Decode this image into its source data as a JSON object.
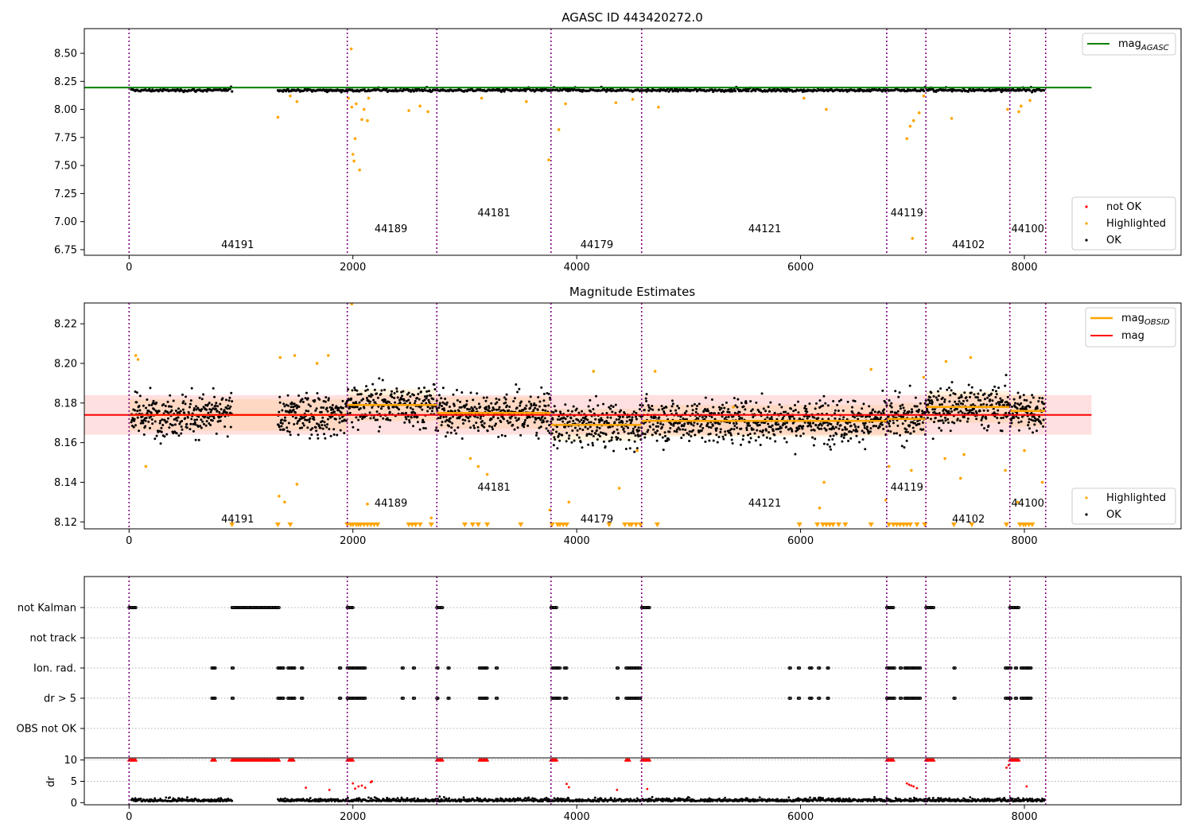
{
  "chart_data": [
    {
      "type": "scatter",
      "title": "AGASC ID 443420272.0",
      "xlabel": "",
      "ylabel": "",
      "xlim": [
        -400,
        9400
      ],
      "ylim": [
        6.7,
        8.72
      ],
      "xticks": [
        0,
        2000,
        4000,
        6000,
        8000
      ],
      "yticks": [
        6.75,
        7.0,
        7.25,
        7.5,
        7.75,
        8.0,
        8.25,
        8.5
      ],
      "ytick_labels": [
        "6.75",
        "7.00",
        "7.25",
        "7.50",
        "7.75",
        "8.00",
        "8.25",
        "8.50"
      ],
      "mag_agasc": 8.195,
      "mag_agasc_xrange": [
        -400,
        8600
      ],
      "ok_level": 8.17,
      "legend_upper": [
        "mag_AGASC"
      ],
      "legend_lower": [
        "not OK",
        "Highlighted",
        "OK"
      ],
      "highlighted": [
        {
          "x": 1330,
          "y": 7.93
        },
        {
          "x": 1440,
          "y": 8.12
        },
        {
          "x": 1500,
          "y": 8.07
        },
        {
          "x": 1960,
          "y": 8.1
        },
        {
          "x": 1985,
          "y": 8.54
        },
        {
          "x": 1990,
          "y": 8.02
        },
        {
          "x": 2000,
          "y": 7.6
        },
        {
          "x": 2010,
          "y": 7.54
        },
        {
          "x": 2020,
          "y": 7.74
        },
        {
          "x": 2030,
          "y": 8.05
        },
        {
          "x": 2060,
          "y": 7.46
        },
        {
          "x": 2080,
          "y": 7.91
        },
        {
          "x": 2100,
          "y": 8.0
        },
        {
          "x": 2130,
          "y": 7.9
        },
        {
          "x": 2140,
          "y": 8.1
        },
        {
          "x": 2500,
          "y": 7.99
        },
        {
          "x": 2600,
          "y": 8.03
        },
        {
          "x": 2670,
          "y": 7.98
        },
        {
          "x": 3150,
          "y": 8.1
        },
        {
          "x": 3550,
          "y": 8.07
        },
        {
          "x": 3750,
          "y": 7.55
        },
        {
          "x": 3840,
          "y": 7.82
        },
        {
          "x": 3900,
          "y": 8.05
        },
        {
          "x": 4350,
          "y": 8.06
        },
        {
          "x": 4500,
          "y": 8.09
        },
        {
          "x": 4730,
          "y": 8.02
        },
        {
          "x": 6030,
          "y": 8.1
        },
        {
          "x": 6230,
          "y": 8.0
        },
        {
          "x": 6950,
          "y": 7.74
        },
        {
          "x": 6980,
          "y": 7.85
        },
        {
          "x": 7000,
          "y": 6.85
        },
        {
          "x": 7010,
          "y": 7.9
        },
        {
          "x": 7060,
          "y": 7.97
        },
        {
          "x": 7100,
          "y": 8.12
        },
        {
          "x": 7350,
          "y": 7.92
        },
        {
          "x": 7850,
          "y": 8.0
        },
        {
          "x": 7950,
          "y": 7.98
        },
        {
          "x": 7970,
          "y": 8.03
        },
        {
          "x": 8050,
          "y": 8.08
        }
      ]
    },
    {
      "type": "scatter",
      "title": "Magnitude Estimates",
      "xlabel": "",
      "ylabel": "",
      "xlim": [
        -400,
        9400
      ],
      "ylim": [
        8.1165,
        8.2305
      ],
      "xticks": [
        0,
        2000,
        4000,
        6000,
        8000
      ],
      "yticks": [
        8.12,
        8.14,
        8.16,
        8.18,
        8.2,
        8.22
      ],
      "ytick_labels": [
        "8.12",
        "8.14",
        "8.16",
        "8.18",
        "8.20",
        "8.22"
      ],
      "mag": 8.174,
      "mag_band": [
        8.164,
        8.184
      ],
      "mag_xrange": [
        -400,
        8600
      ],
      "mag_obsid": [
        {
          "obsid": "44191",
          "x0": 0,
          "x1": 1950,
          "mag": 8.174
        },
        {
          "obsid": "44189",
          "x0": 1950,
          "x1": 2750,
          "mag": 8.179
        },
        {
          "obsid": "44181",
          "x0": 2750,
          "x1": 3770,
          "mag": 8.175
        },
        {
          "obsid": "44179",
          "x0": 3770,
          "x1": 4580,
          "mag": 8.169
        },
        {
          "obsid": "44121",
          "x0": 4580,
          "x1": 6770,
          "mag": 8.171
        },
        {
          "obsid": "44119",
          "x0": 6770,
          "x1": 7120,
          "mag": 8.172
        },
        {
          "obsid": "44102",
          "x0": 7120,
          "x1": 7870,
          "mag": 8.178
        },
        {
          "obsid": "44100",
          "x0": 7870,
          "x1": 8190,
          "mag": 8.176
        }
      ],
      "legend_upper": [
        "mag_OBSID",
        "mag"
      ],
      "legend_lower": [
        "Highlighted",
        "OK"
      ],
      "highlighted": [
        {
          "x": 60,
          "y": 8.204
        },
        {
          "x": 80,
          "y": 8.202
        },
        {
          "x": 150,
          "y": 8.148
        },
        {
          "x": 1350,
          "y": 8.203
        },
        {
          "x": 1340,
          "y": 8.133
        },
        {
          "x": 1390,
          "y": 8.13
        },
        {
          "x": 1480,
          "y": 8.204
        },
        {
          "x": 1500,
          "y": 8.139
        },
        {
          "x": 1680,
          "y": 8.2
        },
        {
          "x": 1780,
          "y": 8.204
        },
        {
          "x": 1990,
          "y": 8.23
        },
        {
          "x": 2130,
          "y": 8.129
        },
        {
          "x": 2700,
          "y": 8.122
        },
        {
          "x": 3050,
          "y": 8.152
        },
        {
          "x": 3120,
          "y": 8.148
        },
        {
          "x": 3200,
          "y": 8.144
        },
        {
          "x": 3760,
          "y": 8.126
        },
        {
          "x": 3930,
          "y": 8.13
        },
        {
          "x": 4150,
          "y": 8.196
        },
        {
          "x": 4380,
          "y": 8.137
        },
        {
          "x": 4540,
          "y": 8.156
        },
        {
          "x": 4700,
          "y": 8.196
        },
        {
          "x": 5400,
          "y": 8.178
        },
        {
          "x": 6170,
          "y": 8.127
        },
        {
          "x": 6210,
          "y": 8.14
        },
        {
          "x": 6630,
          "y": 8.197
        },
        {
          "x": 6760,
          "y": 8.131
        },
        {
          "x": 6790,
          "y": 8.148
        },
        {
          "x": 6990,
          "y": 8.146
        },
        {
          "x": 7100,
          "y": 8.193
        },
        {
          "x": 7290,
          "y": 8.152
        },
        {
          "x": 7300,
          "y": 8.201
        },
        {
          "x": 7430,
          "y": 8.142
        },
        {
          "x": 7460,
          "y": 8.154
        },
        {
          "x": 7520,
          "y": 8.203
        },
        {
          "x": 7830,
          "y": 8.146
        },
        {
          "x": 7940,
          "y": 8.13
        },
        {
          "x": 8000,
          "y": 8.156
        },
        {
          "x": 8160,
          "y": 8.14
        }
      ],
      "lower_limit_markers_x": [
        920,
        1330,
        1440,
        1950,
        1980,
        2000,
        2030,
        2050,
        2070,
        2100,
        2130,
        2160,
        2190,
        2220,
        2500,
        2530,
        2560,
        2600,
        2700,
        3000,
        3070,
        3120,
        3200,
        3500,
        3780,
        3830,
        3850,
        3880,
        3910,
        4290,
        4430,
        4470,
        4490,
        4530,
        4570,
        4720,
        5990,
        6150,
        6200,
        6230,
        6260,
        6290,
        6340,
        6400,
        6630,
        6790,
        6830,
        6860,
        6890,
        6920,
        6950,
        6980,
        7040,
        7110,
        7370,
        7530,
        7840,
        7960,
        7990,
        8010,
        8040,
        8070
      ]
    },
    {
      "type": "scatter",
      "title": "",
      "xlabel": "",
      "xlim": [
        -400,
        9400
      ],
      "xticks": [
        0,
        2000,
        4000,
        6000,
        8000
      ],
      "flag_rows": [
        "not Kalman",
        "not track",
        "Ion. rad.",
        "dr > 5",
        "OBS not OK"
      ],
      "flag_segments": [
        {
          "flag": "not Kalman",
          "ranges": [
            [
              0,
              60
            ],
            [
              920,
              1340
            ],
            [
              1950,
              2000
            ],
            [
              2750,
              2800
            ],
            [
              3770,
              3820
            ],
            [
              4580,
              4650
            ],
            [
              6770,
              6830
            ],
            [
              7120,
              7190
            ],
            [
              7870,
              7950
            ]
          ]
        },
        {
          "flag": "Ion. rad.",
          "ranges": [
            [
              740,
              770
            ],
            [
              920,
              930
            ],
            [
              1330,
              1380
            ],
            [
              1420,
              1480
            ],
            [
              1540,
              1550
            ],
            [
              1880,
              1890
            ],
            [
              1950,
              2110
            ],
            [
              2440,
              2450
            ],
            [
              2540,
              2550
            ],
            [
              2750,
              2760
            ],
            [
              2850,
              2860
            ],
            [
              3130,
              3200
            ],
            [
              3280,
              3290
            ],
            [
              3780,
              3850
            ],
            [
              3890,
              3910
            ],
            [
              4360,
              4370
            ],
            [
              4440,
              4570
            ],
            [
              5900,
              5910
            ],
            [
              5980,
              5990
            ],
            [
              6080,
              6100
            ],
            [
              6160,
              6170
            ],
            [
              6240,
              6250
            ],
            [
              6770,
              6840
            ],
            [
              6890,
              6900
            ],
            [
              6930,
              7070
            ],
            [
              7370,
              7380
            ],
            [
              7830,
              7880
            ],
            [
              7920,
              7930
            ],
            [
              7970,
              8060
            ]
          ]
        },
        {
          "flag": "dr > 5",
          "ranges": [
            [
              740,
              770
            ],
            [
              920,
              930
            ],
            [
              1330,
              1380
            ],
            [
              1420,
              1480
            ],
            [
              1540,
              1550
            ],
            [
              1880,
              1890
            ],
            [
              1950,
              2110
            ],
            [
              2440,
              2450
            ],
            [
              2540,
              2550
            ],
            [
              2750,
              2760
            ],
            [
              2850,
              2860
            ],
            [
              3130,
              3200
            ],
            [
              3280,
              3290
            ],
            [
              3780,
              3850
            ],
            [
              3890,
              3910
            ],
            [
              4360,
              4370
            ],
            [
              4440,
              4570
            ],
            [
              5900,
              5910
            ],
            [
              5980,
              5990
            ],
            [
              6080,
              6100
            ],
            [
              6160,
              6170
            ],
            [
              6240,
              6250
            ],
            [
              6770,
              6840
            ],
            [
              6890,
              6900
            ],
            [
              6930,
              7070
            ],
            [
              7370,
              7380
            ],
            [
              7830,
              7880
            ],
            [
              7920,
              7930
            ],
            [
              7970,
              8060
            ]
          ]
        }
      ],
      "dr_ylabel": "dr",
      "dr_yticks": [
        0,
        5,
        10
      ],
      "dr_ylim": [
        -0.5,
        10.5
      ],
      "dr_clip_ranges": [
        [
          0,
          60
        ],
        [
          740,
          770
        ],
        [
          920,
          1340
        ],
        [
          1430,
          1470
        ],
        [
          1950,
          2000
        ],
        [
          2750,
          2800
        ],
        [
          3130,
          3200
        ],
        [
          3770,
          3820
        ],
        [
          4440,
          4470
        ],
        [
          4580,
          4650
        ],
        [
          6770,
          6830
        ],
        [
          7120,
          7190
        ],
        [
          7870,
          7950
        ]
      ],
      "dr_red_points": [
        {
          "x": 1580,
          "y": 3.5
        },
        {
          "x": 1790,
          "y": 3.0
        },
        {
          "x": 2000,
          "y": 4.5
        },
        {
          "x": 2020,
          "y": 3.3
        },
        {
          "x": 2050,
          "y": 3.8
        },
        {
          "x": 2080,
          "y": 4.0
        },
        {
          "x": 2110,
          "y": 3.5
        },
        {
          "x": 2160,
          "y": 4.8
        },
        {
          "x": 2170,
          "y": 5.0
        },
        {
          "x": 3910,
          "y": 4.4
        },
        {
          "x": 3930,
          "y": 3.6
        },
        {
          "x": 4360,
          "y": 3.0
        },
        {
          "x": 4630,
          "y": 3.2
        },
        {
          "x": 6950,
          "y": 4.5
        },
        {
          "x": 6970,
          "y": 4.2
        },
        {
          "x": 6990,
          "y": 4.0
        },
        {
          "x": 7010,
          "y": 3.8
        },
        {
          "x": 7040,
          "y": 3.4
        },
        {
          "x": 7840,
          "y": 8.2
        },
        {
          "x": 7860,
          "y": 8.8
        },
        {
          "x": 8020,
          "y": 3.8
        }
      ]
    }
  ],
  "obs_boundaries": [
    0,
    1950,
    2750,
    3770,
    4580,
    6770,
    7120,
    7870,
    8190
  ],
  "obs_labels": [
    {
      "name": "44191",
      "x": 970,
      "level": "low"
    },
    {
      "name": "44189",
      "x": 2340,
      "level": "mid"
    },
    {
      "name": "44181",
      "x": 3260,
      "level": "high"
    },
    {
      "name": "44179",
      "x": 4180,
      "level": "low"
    },
    {
      "name": "44121",
      "x": 5680,
      "level": "mid"
    },
    {
      "name": "44119",
      "x": 6950,
      "level": "high"
    },
    {
      "name": "44102",
      "x": 7500,
      "level": "low"
    },
    {
      "name": "44100",
      "x": 8030,
      "level": "mid"
    }
  ],
  "colors": {
    "ok": "#000000",
    "highlighted": "#ffa500",
    "not_ok": "#ff0000",
    "mag_agasc": "#008000",
    "mag": "#ff0000",
    "mag_obsid": "#ffa500",
    "boundary": "#800080",
    "grid": "#b0b0b0"
  }
}
